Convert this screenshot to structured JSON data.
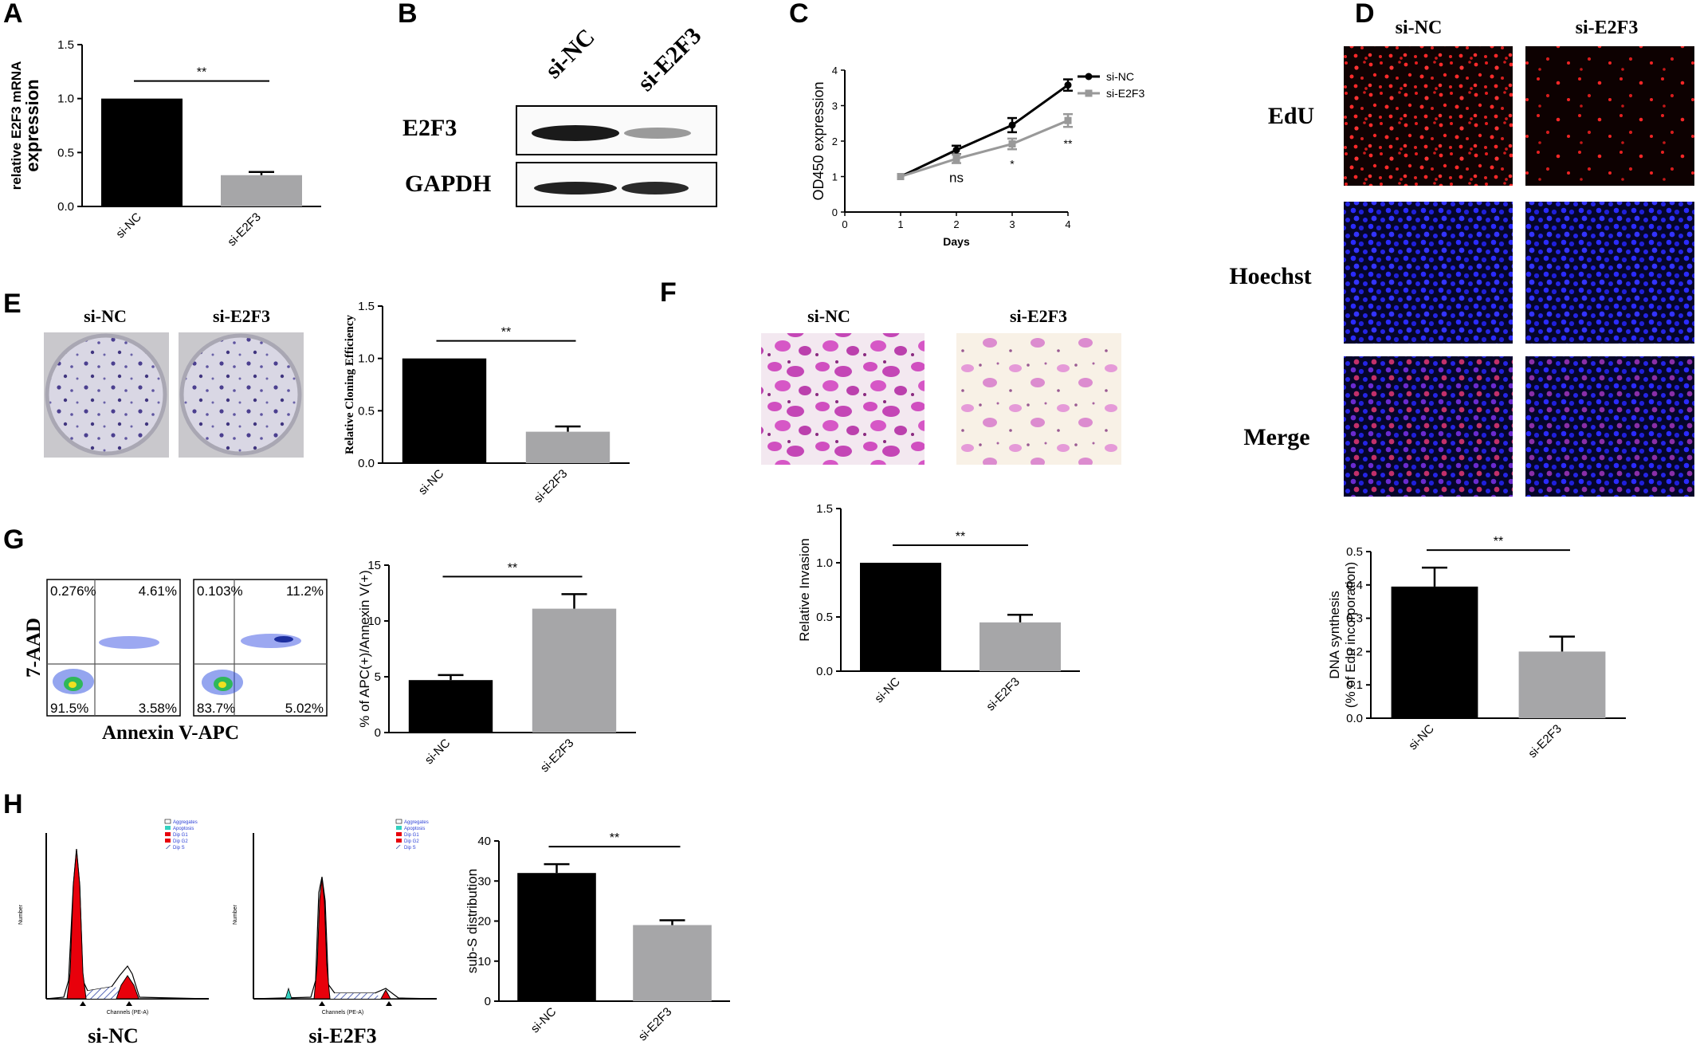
{
  "panels": {
    "A": {
      "letter": "A"
    },
    "B": {
      "letter": "B",
      "lanes": [
        "si-NC",
        "si-E2F3"
      ],
      "bands": [
        "E2F3",
        "GAPDH"
      ]
    },
    "C": {
      "letter": "C"
    },
    "D": {
      "letter": "D",
      "columns": [
        "si-NC",
        "si-E2F3"
      ],
      "rows": [
        "EdU",
        "Hoechst",
        "Merge"
      ]
    },
    "E": {
      "letter": "E",
      "plates": [
        "si-NC",
        "si-E2F3"
      ]
    },
    "F": {
      "letter": "F",
      "images": [
        "si-NC",
        "si-E2F3"
      ]
    },
    "G": {
      "letter": "G",
      "yaxis_label": "7-AAD",
      "xaxis_label": "Annexin V-APC",
      "quadrants": [
        {
          "UL": "0.276%",
          "UR": "4.61%",
          "LL": "91.5%",
          "LR": "3.58%"
        },
        {
          "UL": "0.103%",
          "UR": "11.2%",
          "LL": "83.7%",
          "LR": "5.02%"
        }
      ]
    },
    "H": {
      "letter": "H",
      "captions": [
        "si-NC",
        "si-E2F3"
      ],
      "legend": [
        "Aggregates",
        "Apoptosis",
        "Dip G1",
        "Dip G2",
        "Dip S"
      ],
      "hist_xlabel": "Channels (PE-A)",
      "hist_ylabel": "Number"
    }
  },
  "chart_data": [
    {
      "id": "A",
      "type": "bar",
      "categories": [
        "si-NC",
        "si-E2F3"
      ],
      "values": [
        1.0,
        0.29
      ],
      "errors": [
        0,
        0.03
      ],
      "ylabel": "relative E2F3 mRNA expression",
      "ylim": [
        0,
        1.5
      ],
      "yticks": [
        "0.0",
        "0.5",
        "1.0",
        "1.5"
      ],
      "significance": "**"
    },
    {
      "id": "C",
      "type": "line",
      "x": [
        1,
        2,
        3,
        4
      ],
      "xticks": [
        "0",
        "1",
        "2",
        "3",
        "4"
      ],
      "xlabel": "Days",
      "ylabel": "OD450 expression",
      "ylim": [
        0,
        4
      ],
      "yticks": [
        "0",
        "1",
        "2",
        "3",
        "4"
      ],
      "series": [
        {
          "name": "si-NC",
          "values": [
            1.0,
            1.75,
            2.45,
            3.58
          ],
          "errors": [
            0,
            0.12,
            0.2,
            0.16
          ],
          "color": "#000000"
        },
        {
          "name": "si-E2F3",
          "values": [
            1.0,
            1.5,
            1.92,
            2.58
          ],
          "errors": [
            0,
            0.12,
            0.15,
            0.18
          ],
          "color": "#999999"
        }
      ],
      "annotations": [
        "ns",
        "*",
        "**"
      ]
    },
    {
      "id": "D",
      "type": "bar",
      "categories": [
        "si-NC",
        "si-E2F3"
      ],
      "values": [
        0.395,
        0.2
      ],
      "errors": [
        0.057,
        0.045
      ],
      "ylabel": "DNA synthesis",
      "ylabel2": "(% of Edu incorporation)",
      "ylim": [
        0,
        0.5
      ],
      "yticks": [
        "0.0",
        "0.1",
        "0.2",
        "0.3",
        "0.4",
        "0.5"
      ],
      "significance": "**"
    },
    {
      "id": "E",
      "type": "bar",
      "categories": [
        "si-NC",
        "si-E2F3"
      ],
      "values": [
        1.0,
        0.3
      ],
      "errors": [
        0,
        0.05
      ],
      "ylabel": "Relative Cloning Efficiency",
      "ylim": [
        0,
        1.5
      ],
      "yticks": [
        "0.0",
        "0.5",
        "1.0",
        "1.5"
      ],
      "significance": "**"
    },
    {
      "id": "F",
      "type": "bar",
      "categories": [
        "si-NC",
        "si-E2F3"
      ],
      "values": [
        1.0,
        0.45
      ],
      "errors": [
        0,
        0.07
      ],
      "ylabel": "Relative Invasion",
      "ylim": [
        0,
        1.5
      ],
      "yticks": [
        "0.0",
        "0.5",
        "1.0",
        "1.5"
      ],
      "significance": "**"
    },
    {
      "id": "G",
      "type": "bar",
      "categories": [
        "si-NC",
        "si-E2F3"
      ],
      "values": [
        4.7,
        11.1
      ],
      "errors": [
        0.45,
        1.3
      ],
      "ylabel": "% of APC(+)/Annexin V(+)",
      "ylim": [
        0,
        15
      ],
      "yticks": [
        "0",
        "5",
        "10",
        "15"
      ],
      "significance": "**"
    },
    {
      "id": "H",
      "type": "bar",
      "categories": [
        "si-NC",
        "si-E2F3"
      ],
      "values": [
        32,
        19
      ],
      "errors": [
        2.2,
        1.2
      ],
      "ylabel": "sub-S distribution",
      "ylim": [
        0,
        40
      ],
      "yticks": [
        "0",
        "10",
        "20",
        "30",
        "40"
      ],
      "significance": "**"
    }
  ],
  "colors": {
    "nc": "#000000",
    "e2f3": "#a6a6a8"
  }
}
